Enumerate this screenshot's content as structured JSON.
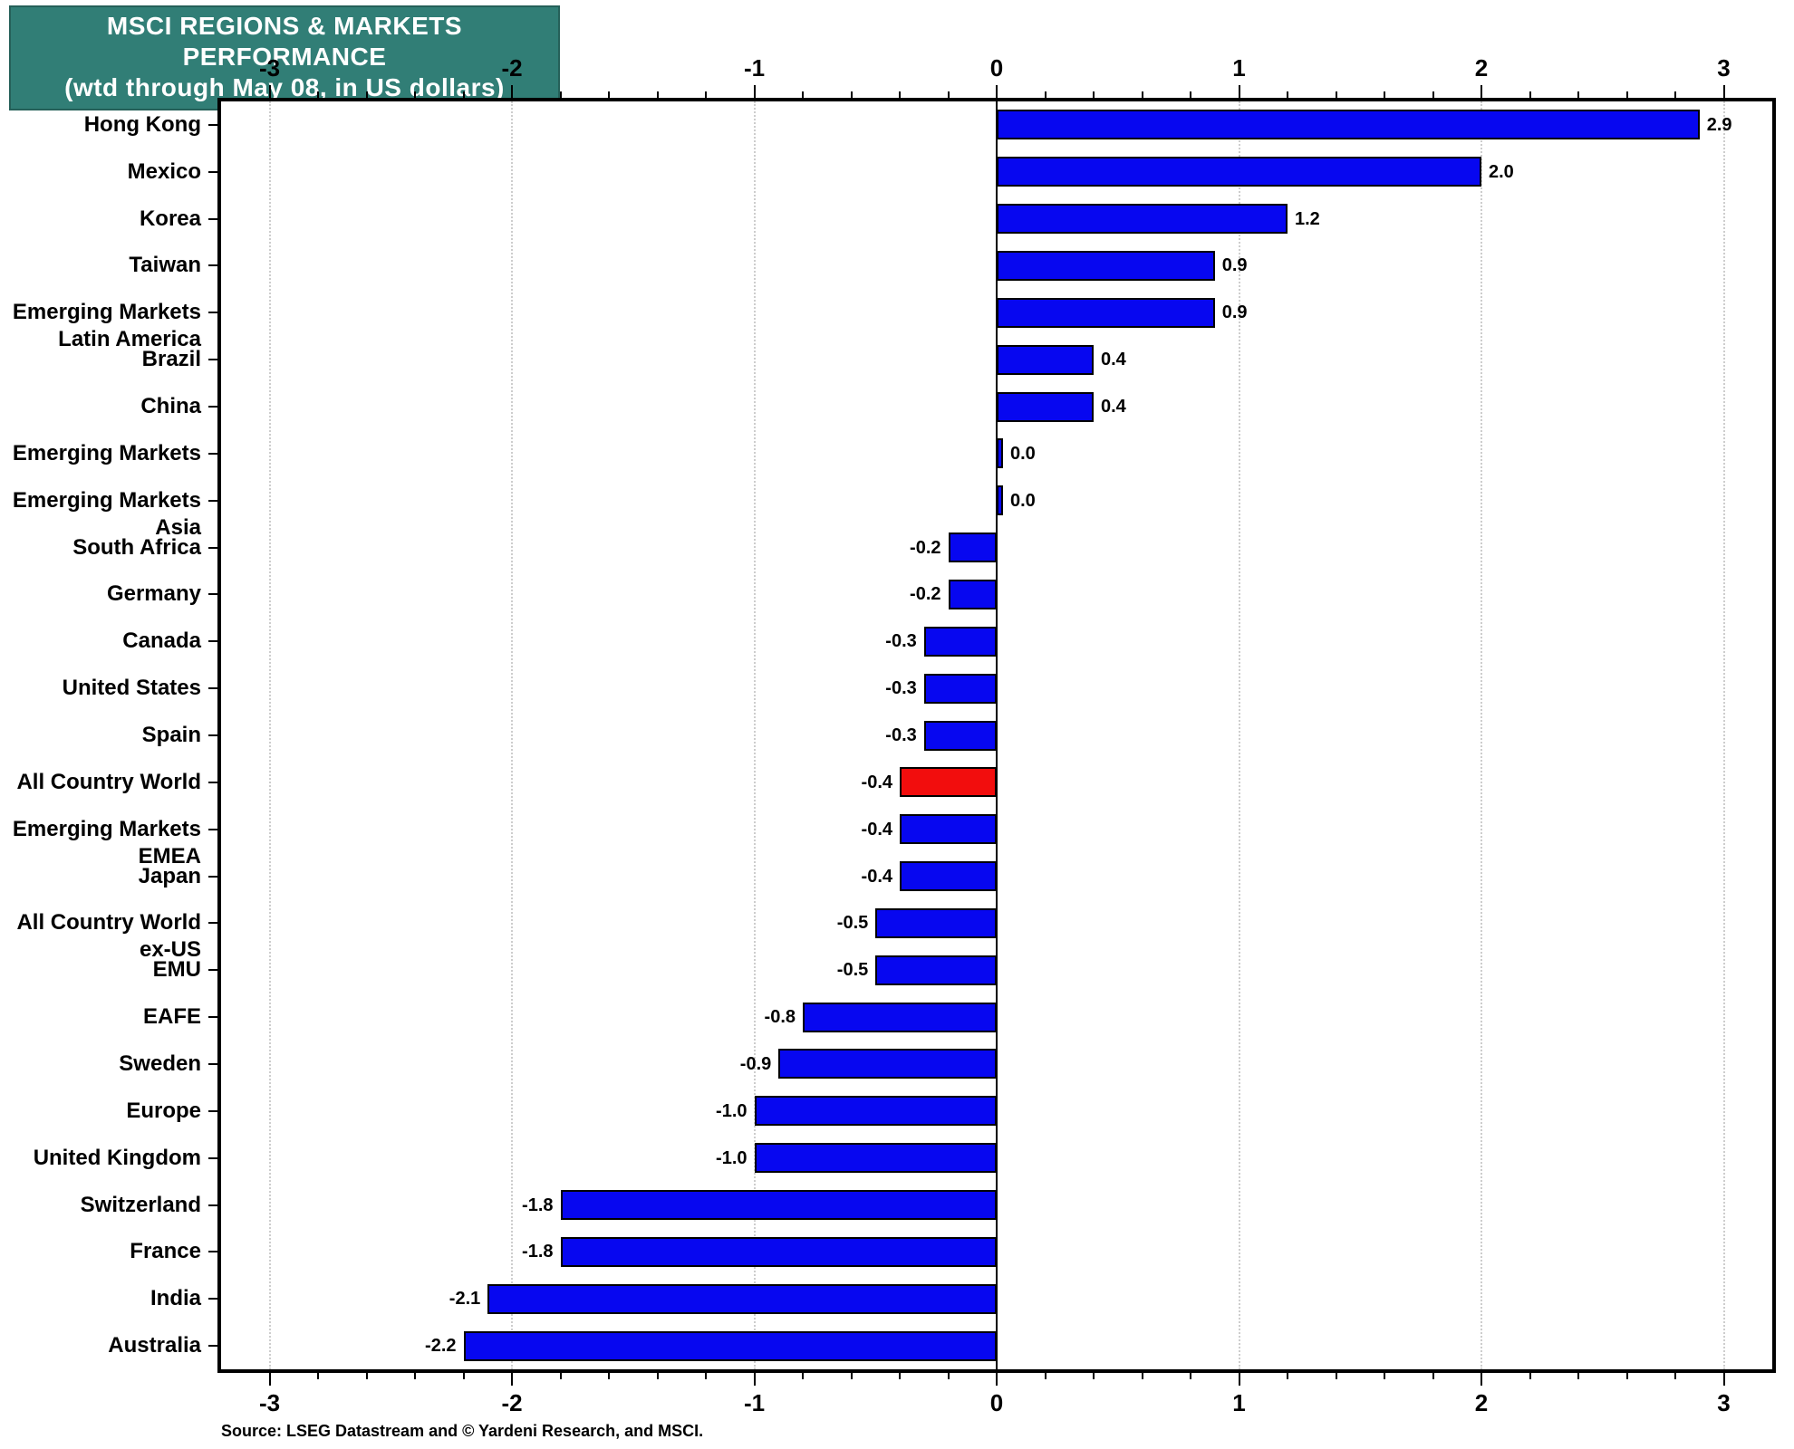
{
  "title": {
    "line1": "MSCI REGIONS & MARKETS PERFORMANCE",
    "line2": "(wtd through May 08, in US dollars)"
  },
  "source": "Source: LSEG Datastream and © Yardeni Research, and MSCI.",
  "colors": {
    "title_bg": "#317E76",
    "title_text": "#FFFFFF",
    "blue": "#0707F0",
    "red": "#F20D0D",
    "bar_border": "#000000",
    "grid": "#CDCDCD",
    "axis": "#000000"
  },
  "chart_data": {
    "type": "bar",
    "orientation": "horizontal",
    "title": "MSCI REGIONS & MARKETS PERFORMANCE (wtd through May 08, in US dollars)",
    "xlabel": "",
    "ylabel": "",
    "xlim": [
      -3.2,
      3.2
    ],
    "x_major_ticks": [
      -3,
      -2,
      -1,
      0,
      1,
      2,
      3
    ],
    "x_tick_labels": [
      "-3",
      "-2",
      "-1",
      "0",
      "1",
      "2",
      "3"
    ],
    "x_minor_step": 0.2,
    "grid": "vertical dotted at integer ticks, solid line at zero",
    "legend": "none",
    "categories": [
      {
        "lines": [
          "Hong Kong"
        ],
        "value": 2.9,
        "display": "2.9",
        "color": "blue"
      },
      {
        "lines": [
          "Mexico"
        ],
        "value": 2.0,
        "display": "2.0",
        "color": "blue"
      },
      {
        "lines": [
          "Korea"
        ],
        "value": 1.2,
        "display": "1.2",
        "color": "blue"
      },
      {
        "lines": [
          "Taiwan"
        ],
        "value": 0.9,
        "display": "0.9",
        "color": "blue"
      },
      {
        "lines": [
          "Emerging Markets",
          "Latin America"
        ],
        "value": 0.9,
        "display": "0.9",
        "color": "blue"
      },
      {
        "lines": [
          "Brazil"
        ],
        "value": 0.4,
        "display": "0.4",
        "color": "blue"
      },
      {
        "lines": [
          "China"
        ],
        "value": 0.4,
        "display": "0.4",
        "color": "blue"
      },
      {
        "lines": [
          "Emerging Markets"
        ],
        "value": 0.0,
        "display": "0.0",
        "color": "blue"
      },
      {
        "lines": [
          "Emerging Markets",
          "Asia"
        ],
        "value": 0.0,
        "display": "0.0",
        "color": "blue"
      },
      {
        "lines": [
          "South Africa"
        ],
        "value": -0.2,
        "display": "-0.2",
        "color": "blue"
      },
      {
        "lines": [
          "Germany"
        ],
        "value": -0.2,
        "display": "-0.2",
        "color": "blue"
      },
      {
        "lines": [
          "Canada"
        ],
        "value": -0.3,
        "display": "-0.3",
        "color": "blue"
      },
      {
        "lines": [
          "United States"
        ],
        "value": -0.3,
        "display": "-0.3",
        "color": "blue"
      },
      {
        "lines": [
          "Spain"
        ],
        "value": -0.3,
        "display": "-0.3",
        "color": "blue"
      },
      {
        "lines": [
          "All Country World"
        ],
        "value": -0.4,
        "display": "-0.4",
        "color": "red"
      },
      {
        "lines": [
          "Emerging Markets",
          "EMEA"
        ],
        "value": -0.4,
        "display": "-0.4",
        "color": "blue"
      },
      {
        "lines": [
          "Japan"
        ],
        "value": -0.4,
        "display": "-0.4",
        "color": "blue"
      },
      {
        "lines": [
          "All Country World",
          "ex-US"
        ],
        "value": -0.5,
        "display": "-0.5",
        "color": "blue"
      },
      {
        "lines": [
          "EMU"
        ],
        "value": -0.5,
        "display": "-0.5",
        "color": "blue"
      },
      {
        "lines": [
          "EAFE"
        ],
        "value": -0.8,
        "display": "-0.8",
        "color": "blue"
      },
      {
        "lines": [
          "Sweden"
        ],
        "value": -0.9,
        "display": "-0.9",
        "color": "blue"
      },
      {
        "lines": [
          "Europe"
        ],
        "value": -1.0,
        "display": "-1.0",
        "color": "blue"
      },
      {
        "lines": [
          "United Kingdom"
        ],
        "value": -1.0,
        "display": "-1.0",
        "color": "blue"
      },
      {
        "lines": [
          "Switzerland"
        ],
        "value": -1.8,
        "display": "-1.8",
        "color": "blue"
      },
      {
        "lines": [
          "France"
        ],
        "value": -1.8,
        "display": "-1.8",
        "color": "blue"
      },
      {
        "lines": [
          "India"
        ],
        "value": -2.1,
        "display": "-2.1",
        "color": "blue"
      },
      {
        "lines": [
          "Australia"
        ],
        "value": -2.2,
        "display": "-2.2",
        "color": "blue"
      }
    ]
  }
}
